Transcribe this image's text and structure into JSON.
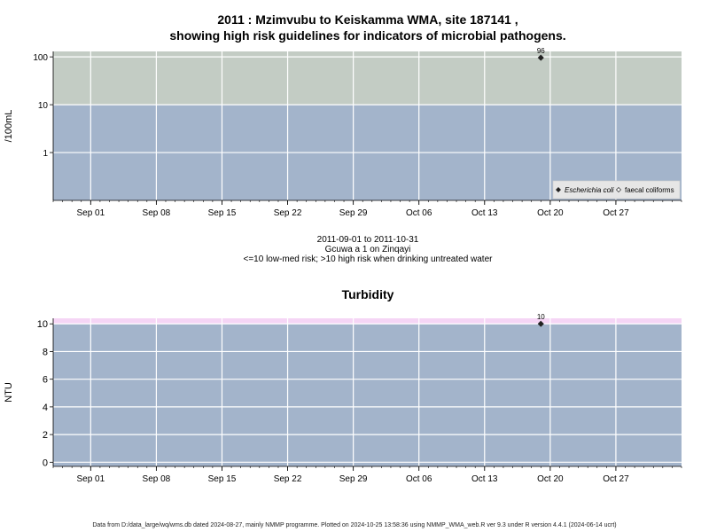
{
  "chart_data": [
    {
      "type": "scatter",
      "title": "2011 : Mzimvubu to Keiskamma WMA, site 187141 ,",
      "title_line2": "showing high risk guidelines for indicators of microbial pathogens.",
      "xlabel_lines": [
        "2011-09-01 to 2011-10-31",
        "Gcuwa a 1 on Zinqayi",
        "<=10 low-med risk; >10 high risk when drinking untreated water"
      ],
      "ylabel": "/100mL",
      "y_scale": "log",
      "ylim": [
        0.1,
        130
      ],
      "xlim": [
        "2011-08-28",
        "2011-11-03"
      ],
      "y_ticks": [
        1,
        10,
        100
      ],
      "y_tick_labels": [
        "1",
        "10",
        "100"
      ],
      "x_ticks": [
        "2011-09-01",
        "2011-09-08",
        "2011-09-15",
        "2011-09-22",
        "2011-09-29",
        "2011-10-06",
        "2011-10-13",
        "2011-10-20",
        "2011-10-27"
      ],
      "x_tick_labels": [
        "Sep 01",
        "Sep 08",
        "Sep 15",
        "Sep 22",
        "Sep 29",
        "Oct 06",
        "Oct 13",
        "Oct 20",
        "Oct 27"
      ],
      "bands": [
        {
          "from": 0.1,
          "to": 10,
          "color": "#a3b4cb",
          "meaning": "low-med risk"
        },
        {
          "from": 10,
          "to": 130,
          "color": "#c3ccc4",
          "meaning": "high risk"
        }
      ],
      "grid": true,
      "legend_position": "bottom-right",
      "series": [
        {
          "name": "Escherichia coli",
          "marker": "filled-diamond",
          "x": [
            "2011-10-19"
          ],
          "y": [
            96
          ],
          "labels": [
            "96"
          ]
        },
        {
          "name": "faecal coliforms",
          "marker": "open-diamond",
          "x": [],
          "y": []
        }
      ]
    },
    {
      "type": "scatter",
      "title": "Turbidity",
      "ylabel": "NTU",
      "ylim": [
        -0.3,
        10.4
      ],
      "xlim": [
        "2011-08-28",
        "2011-11-03"
      ],
      "y_ticks": [
        0,
        2,
        4,
        6,
        8,
        10
      ],
      "y_tick_labels": [
        "0",
        "2",
        "4",
        "6",
        "8",
        "10"
      ],
      "x_ticks": [
        "2011-09-01",
        "2011-09-08",
        "2011-09-15",
        "2011-09-22",
        "2011-09-29",
        "2011-10-06",
        "2011-10-13",
        "2011-10-20",
        "2011-10-27"
      ],
      "x_tick_labels": [
        "Sep 01",
        "Sep 08",
        "Sep 15",
        "Sep 22",
        "Sep 29",
        "Oct 06",
        "Oct 13",
        "Oct 20",
        "Oct 27"
      ],
      "bands": [
        {
          "from": -0.3,
          "to": 10,
          "color": "#a3b4cb"
        },
        {
          "from": 10,
          "to": 10.4,
          "color": "#f5d5f5"
        }
      ],
      "grid": true,
      "series": [
        {
          "name": "Turbidity",
          "marker": "filled-diamond",
          "x": [
            "2011-10-19"
          ],
          "y": [
            10
          ],
          "labels": [
            "10"
          ]
        }
      ]
    }
  ],
  "footer": "Data from D:/data_large/wq/wms.db dated 2024-08-27, mainly NMMP programme. Plotted on 2024-10-25 13:58:36 using NMMP_WMA_web.R ver 9.3 under R version 4.4.1 (2024-06-14 ucrt)"
}
